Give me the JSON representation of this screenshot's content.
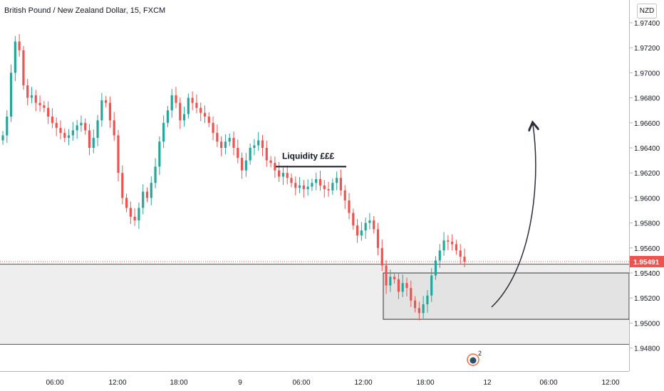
{
  "header": {
    "title": "British Pound / New Zealand Dollar, 15, FXCM",
    "currency_button": "NZD"
  },
  "chart_data": {
    "type": "candlestick",
    "symbol": "GBPNZD",
    "interval": "15",
    "x_tick_labels": [
      "06:00",
      "12:00",
      "18:00",
      "9",
      "06:00",
      "12:00",
      "18:00",
      "12",
      "06:00",
      "12:00"
    ],
    "y_tick_labels": [
      "1.97400",
      "1.97200",
      "1.97000",
      "1.96800",
      "1.96600",
      "1.96400",
      "1.96200",
      "1.96000",
      "1.95800",
      "1.95600",
      "1.95400",
      "1.95200",
      "1.95000",
      "1.94800"
    ],
    "ylim": [
      1.9475,
      1.9753
    ],
    "current_price": "1.95491",
    "current_price_value": 1.95491,
    "colors": {
      "up": "#26a69a",
      "down": "#ef5350",
      "price_tag": "#ef5350",
      "zone_fill": "#eeeeee"
    },
    "series_close": [
      1.965,
      1.9665,
      1.97,
      1.9725,
      1.9718,
      1.969,
      1.968,
      1.9682,
      1.9676,
      1.9674,
      1.9672,
      1.9665,
      1.966,
      1.9656,
      1.9652,
      1.9648,
      1.965,
      1.9654,
      1.9658,
      1.966,
      1.9654,
      1.964,
      1.9648,
      1.9662,
      1.9678,
      1.9676,
      1.9662,
      1.965,
      1.962,
      1.96,
      1.9592,
      1.9585,
      1.9582,
      1.9592,
      1.9605,
      1.96,
      1.9612,
      1.9625,
      1.9645,
      1.966,
      1.967,
      1.9682,
      1.9676,
      1.9662,
      1.9667,
      1.968,
      1.9676,
      1.9672,
      1.9668,
      1.9665,
      1.966,
      1.9652,
      1.9645,
      1.964,
      1.9645,
      1.9648,
      1.964,
      1.9632,
      1.9622,
      1.963,
      1.964,
      1.9642,
      1.9646,
      1.964,
      1.963,
      1.9628,
      1.9622,
      1.9617,
      1.962,
      1.9616,
      1.9612,
      1.9608,
      1.961,
      1.9607,
      1.9609,
      1.9612,
      1.9615,
      1.961,
      1.9607,
      1.9606,
      1.9612,
      1.9616,
      1.9606,
      1.9598,
      1.9588,
      1.9578,
      1.957,
      1.9574,
      1.958,
      1.9582,
      1.9575,
      1.956,
      1.9546,
      1.953,
      1.9537,
      1.9535,
      1.9525,
      1.9532,
      1.9528,
      1.9518,
      1.9512,
      1.9508,
      1.9515,
      1.9522,
      1.9538,
      1.955,
      1.9558,
      1.9566,
      1.9565,
      1.9563,
      1.9558,
      1.9553,
      1.9549
    ]
  },
  "annotations": {
    "liquidity_label": "Liquidity £££",
    "liquidity_level": 1.9625,
    "inner_zone": {
      "from": 1.954,
      "to": 1.9503
    },
    "outer_zone": {
      "from": 1.9547,
      "to": 1.9483
    },
    "badge_count": "2"
  }
}
